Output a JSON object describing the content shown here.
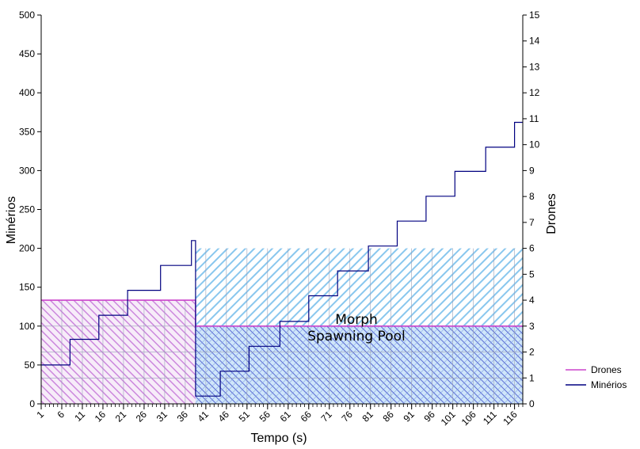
{
  "chart_data": {
    "type": "line",
    "title": "",
    "xlabel": "Tempo (s)",
    "ylabel": "Minérios",
    "y2label": "Drones",
    "xlim": [
      1,
      118
    ],
    "ylim": [
      0,
      500
    ],
    "y2lim": [
      0,
      15
    ],
    "x_ticks": [
      1,
      6,
      11,
      16,
      21,
      26,
      31,
      36,
      41,
      46,
      51,
      56,
      61,
      66,
      71,
      76,
      81,
      86,
      91,
      96,
      101,
      106,
      111,
      116
    ],
    "y_ticks": [
      0,
      50,
      100,
      150,
      200,
      250,
      300,
      350,
      400,
      450,
      500
    ],
    "y2_ticks": [
      0,
      1,
      2,
      3,
      4,
      5,
      6,
      7,
      8,
      9,
      10,
      11,
      12,
      13,
      14,
      15
    ],
    "grid": true,
    "legend_position": "right",
    "series": [
      {
        "name": "Drones",
        "axis": "right",
        "color": "#cc44cc",
        "points": [
          [
            1,
            4
          ],
          [
            38.5,
            4
          ],
          [
            38.5,
            3
          ],
          [
            118,
            3
          ]
        ]
      },
      {
        "name": "Minérios",
        "axis": "left",
        "color": "#000080",
        "points": [
          [
            1,
            50
          ],
          [
            8,
            50
          ],
          [
            8,
            83
          ],
          [
            15,
            83
          ],
          [
            15,
            114
          ],
          [
            22,
            114
          ],
          [
            22,
            146
          ],
          [
            30,
            146
          ],
          [
            30,
            178
          ],
          [
            37.5,
            178
          ],
          [
            37.5,
            210
          ],
          [
            38.5,
            210
          ],
          [
            38.5,
            10
          ],
          [
            44.5,
            10
          ],
          [
            44.5,
            42
          ],
          [
            51.5,
            42
          ],
          [
            51.5,
            74
          ],
          [
            59,
            74
          ],
          [
            59,
            106
          ],
          [
            66,
            106
          ],
          [
            66,
            139
          ],
          [
            73,
            139
          ],
          [
            73,
            171
          ],
          [
            80.5,
            171
          ],
          [
            80.5,
            203
          ],
          [
            87.5,
            203
          ],
          [
            87.5,
            235
          ],
          [
            94.5,
            235
          ],
          [
            94.5,
            267
          ],
          [
            101.5,
            267
          ],
          [
            101.5,
            299
          ],
          [
            109,
            299
          ],
          [
            109,
            330
          ],
          [
            116,
            330
          ],
          [
            116,
            362
          ],
          [
            118,
            362
          ]
        ]
      }
    ],
    "regions": [
      {
        "name": "drones-phase-1",
        "axis": "right",
        "x": [
          1,
          38.5
        ],
        "y": [
          0,
          4
        ],
        "color": "#cc88dd"
      },
      {
        "name": "drones-phase-2",
        "axis": "right",
        "x": [
          38.5,
          118
        ],
        "y": [
          0,
          3
        ],
        "color": "#6a76d8"
      },
      {
        "name": "spawning-pool-band",
        "axis": "left",
        "x": [
          38.5,
          118
        ],
        "y": [
          100,
          200
        ],
        "color": "#89c7ee"
      }
    ],
    "annotations": [
      "Morph",
      "Spawning Pool"
    ]
  }
}
